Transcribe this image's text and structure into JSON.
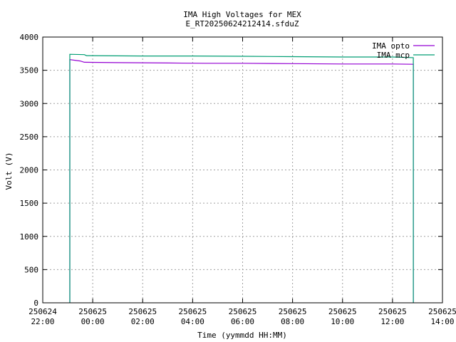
{
  "chart_data": {
    "type": "line",
    "title": "IMA High Voltages for MEX",
    "subtitle": "E_RT20250624212414.sfduZ",
    "xlabel": "Time (yymmdd HH:MM)",
    "ylabel": "Volt (V)",
    "xlim": [
      "250624 22:00",
      "250625 14:00"
    ],
    "ylim": [
      0,
      4000
    ],
    "yticks": [
      0,
      500,
      1000,
      1500,
      2000,
      2500,
      3000,
      3500,
      4000
    ],
    "xticks": [
      {
        "date": "250624",
        "time": "22:00"
      },
      {
        "date": "250625",
        "time": "00:00"
      },
      {
        "date": "250625",
        "time": "02:00"
      },
      {
        "date": "250625",
        "time": "04:00"
      },
      {
        "date": "250625",
        "time": "06:00"
      },
      {
        "date": "250625",
        "time": "08:00"
      },
      {
        "date": "250625",
        "time": "10:00"
      },
      {
        "date": "250625",
        "time": "12:00"
      },
      {
        "date": "250625",
        "time": "14:00"
      }
    ],
    "grid": true,
    "legend_position": "top-right",
    "series": [
      {
        "name": "IMA opto",
        "color": "#9400d3",
        "points": [
          [
            "250624 23:05",
            0
          ],
          [
            "250624 23:05",
            190
          ],
          [
            "250624 23:05",
            0
          ],
          [
            "250624 23:05",
            3660
          ],
          [
            "250624 23:30",
            3640
          ],
          [
            "250624 23:40",
            3620
          ],
          [
            "250625 01:00",
            3615
          ],
          [
            "250625 03:00",
            3610
          ],
          [
            "250625 04:30",
            3605
          ],
          [
            "250625 06:00",
            3605
          ],
          [
            "250625 08:00",
            3600
          ],
          [
            "250625 10:00",
            3595
          ],
          [
            "250625 12:00",
            3595
          ],
          [
            "250625 12:50",
            3590
          ],
          [
            "250625 12:50",
            0
          ]
        ]
      },
      {
        "name": "IMA mcp",
        "color": "#009e73",
        "points": [
          [
            "250624 23:05",
            0
          ],
          [
            "250624 23:05",
            3740
          ],
          [
            "250624 23:40",
            3735
          ],
          [
            "250624 23:45",
            3720
          ],
          [
            "250625 02:00",
            3715
          ],
          [
            "250625 04:00",
            3715
          ],
          [
            "250625 06:00",
            3710
          ],
          [
            "250625 08:00",
            3705
          ],
          [
            "250625 10:00",
            3700
          ],
          [
            "250625 12:00",
            3700
          ],
          [
            "250625 12:50",
            3690
          ],
          [
            "250625 12:50",
            0
          ]
        ]
      }
    ]
  }
}
